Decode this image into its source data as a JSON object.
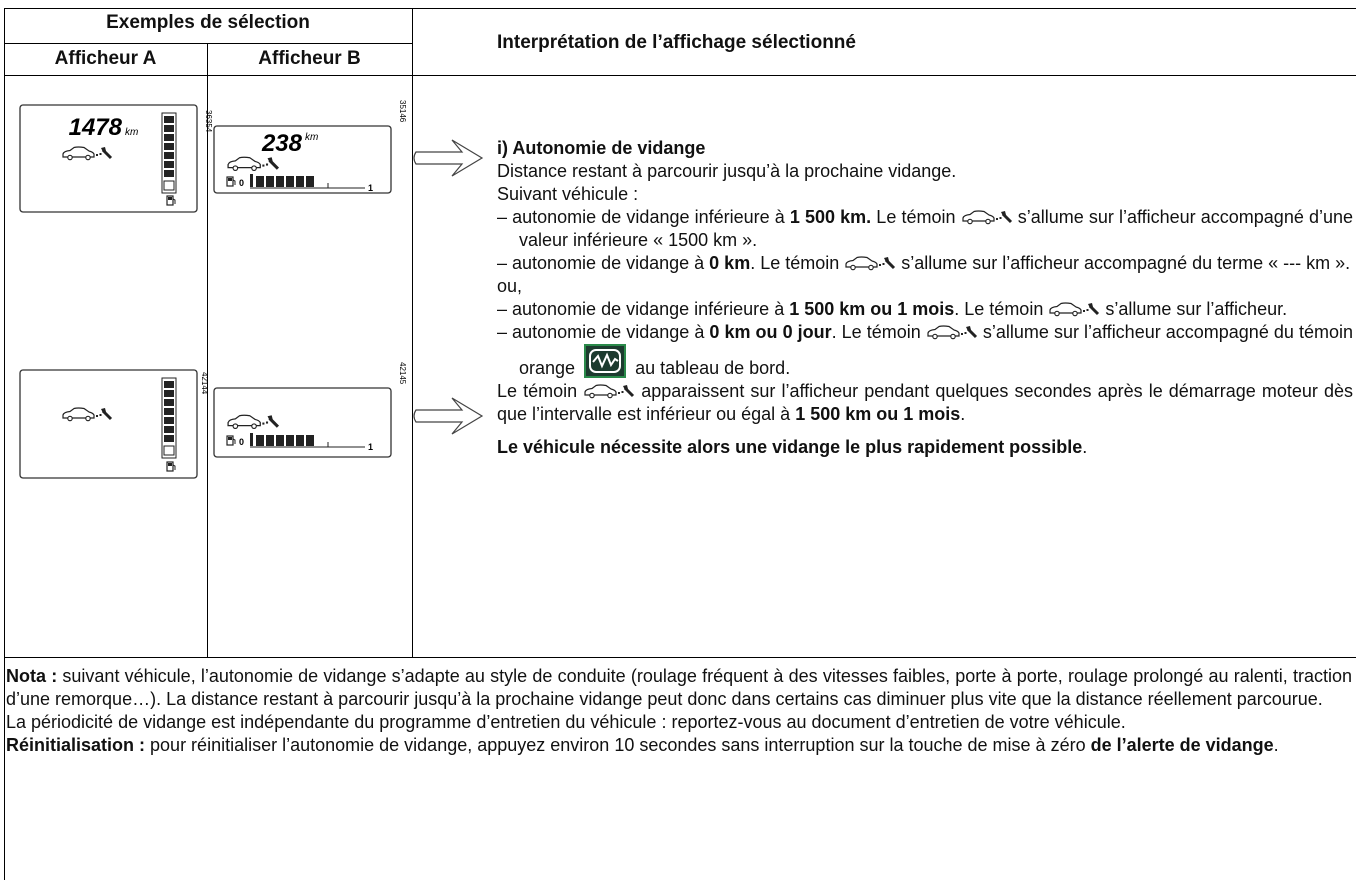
{
  "header": {
    "group": "Exemples de sélection",
    "col_a": "Afficheur A",
    "col_b": "Afficheur B",
    "col_interp": "Interprétation de l’affichage sélectionné"
  },
  "displays": [
    {
      "value": "1478",
      "unit": "km",
      "ref": "36354"
    },
    {
      "value": "238",
      "unit": "km",
      "ref": "35146",
      "gauge_min": "0",
      "gauge_max": "1"
    },
    {
      "ref": "42144"
    },
    {
      "ref": "42145",
      "gauge_min": "0",
      "gauge_max": "1"
    }
  ],
  "interpretation": {
    "heading": "i) Autonomie de vidange",
    "intro": [
      "Distance restant à parcourir jusqu’à la prochaine vidange.",
      "Suivant véhicule :"
    ],
    "items": [
      [
        "– autonomie de vidange inférieure à ",
        "1 500 km.",
        " Le témoin ",
        " s’allume sur l’afficheur accompagné d’une valeur inférieure « 1500 km »."
      ],
      [
        "– autonomie de vidange à ",
        "0 km",
        ". Le témoin ",
        " s’allume sur l’afficheur accompagné du terme « --- km »."
      ],
      [
        "– autonomie de vidange inférieure à ",
        "1 500 km ou 1 mois",
        ". Le témoin ",
        " s’allume sur l’afficheur."
      ],
      [
        "– autonomie de vidange à ",
        "0 km ou 0 jour",
        ". Le témoin ",
        " s’allume  sur l’afficheur accompagné du témoin orange ",
        " au tableau de bord."
      ]
    ],
    "or": "ou,",
    "note": [
      "Le témoin ",
      " apparaissent sur l’afficheur pendant quelques secondes après le démarrage moteur dès que l’intervalle est inférieur ou égal à ",
      "1 500 km ou 1 mois",
      "."
    ],
    "conclusion": [
      "Le véhicule nécessite alors une vidange le plus rapidement possible",
      "."
    ]
  },
  "nota": [
    [
      "Nota :",
      " suivant véhicule, l’autonomie de vidange s’adapte au style de conduite (roulage fréquent à des vitesses faibles, porte à porte, roulage prolongé au ralenti, traction d’une remorque…). La distance restant à parcourir jusqu’à la prochaine vidange peut donc dans certains cas diminuer plus vite que la distance réellement parcourue."
    ],
    [
      "La périodicité de vidange est indépendante du programme d’entretien du véhicule : reportez-vous au document d’entretien de votre véhicule."
    ],
    [
      "Réinitialisation :",
      " pour réinitialiser l’autonomie de vidange, appuyez environ 10 secondes sans interruption sur la touche de mise à zéro ",
      "de l’alerte de vidange",
      "."
    ]
  ]
}
